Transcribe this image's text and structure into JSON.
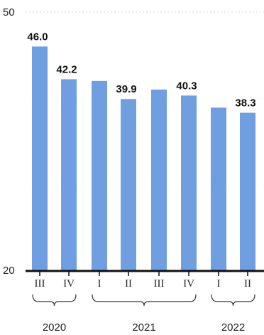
{
  "chart_data": {
    "type": "bar",
    "title": "",
    "xlabel": "",
    "ylabel": "",
    "ylim": [
      20,
      50
    ],
    "yticks": [
      20,
      50
    ],
    "grid": true,
    "categories": [
      "III",
      "IV",
      "I",
      "II",
      "III",
      "IV",
      "I",
      "II"
    ],
    "values": [
      46.0,
      42.2,
      42.0,
      39.9,
      41.0,
      40.3,
      38.9,
      38.3
    ],
    "data_labels": [
      "46.0",
      "42.2",
      null,
      "39.9",
      null,
      "40.3",
      null,
      "38.3"
    ],
    "year_groups": [
      {
        "label": "2020",
        "from": 0,
        "to": 1
      },
      {
        "label": "2021",
        "from": 2,
        "to": 5
      },
      {
        "label": "2022",
        "from": 6,
        "to": 7
      }
    ],
    "bar_color": "#6f9fe0",
    "axis_color": "#111111",
    "grid_color": "#d9d9d9"
  }
}
